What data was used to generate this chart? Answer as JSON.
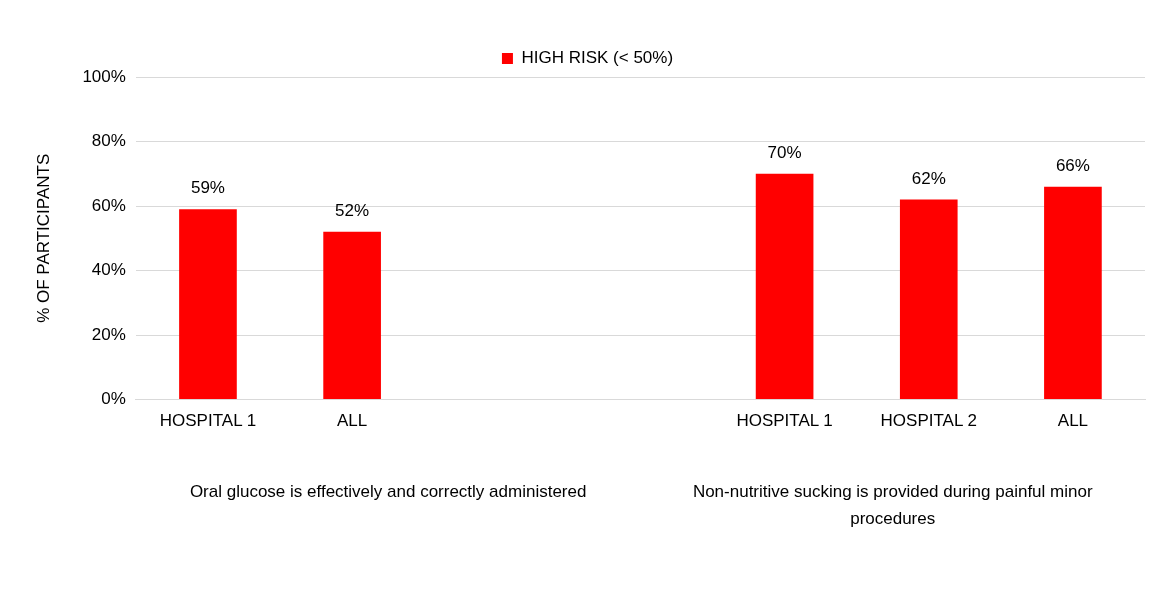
{
  "chart_data": {
    "type": "bar",
    "categories": [
      "HOSPITAL 1",
      "ALL",
      null,
      null,
      "HOSPITAL 1",
      "HOSPITAL 2",
      "ALL"
    ],
    "series": [
      {
        "name": "HIGH RISK (< 50%)",
        "color": "#ff0000",
        "values": [
          59,
          52,
          null,
          null,
          70,
          62,
          66
        ],
        "value_labels": [
          "59%",
          "52%",
          null,
          null,
          "70%",
          "62%",
          "66%"
        ]
      }
    ],
    "ylabel": "% OF PARTICIPANTS",
    "ylim": [
      0,
      100
    ],
    "yticks": [
      {
        "value": 0,
        "label": "0%"
      },
      {
        "value": 20,
        "label": "20%"
      },
      {
        "value": 40,
        "label": "40%"
      },
      {
        "value": 60,
        "label": "60%"
      },
      {
        "value": 80,
        "label": "80%"
      },
      {
        "value": 100,
        "label": "100%"
      }
    ],
    "grid": "y",
    "legend": "top",
    "annotations": [
      "Oral glucose is effectively and correctly administered",
      "Non-nutritive sucking is provided during painful minor procedures"
    ]
  }
}
